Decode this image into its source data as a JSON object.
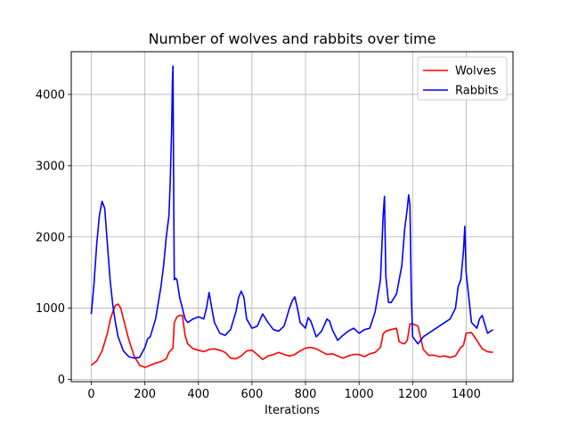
{
  "chart_data": {
    "type": "line",
    "title": "Number of wolves and rabbits over time",
    "xlabel": "Iterations",
    "ylabel": "",
    "xlim": [
      -75,
      1575
    ],
    "ylim": [
      -30,
      4600
    ],
    "xticks": [
      0,
      200,
      400,
      600,
      800,
      1000,
      1200,
      1400
    ],
    "yticks": [
      0,
      1000,
      2000,
      3000,
      4000
    ],
    "grid": true,
    "legend_position": "top-right",
    "series": [
      {
        "name": "Wolves",
        "color": "#ff0000",
        "x": [
          0,
          20,
          40,
          60,
          70,
          80,
          90,
          100,
          110,
          120,
          140,
          160,
          180,
          200,
          220,
          240,
          260,
          280,
          290,
          300,
          305,
          310,
          320,
          330,
          340,
          350,
          360,
          380,
          400,
          420,
          440,
          460,
          480,
          500,
          520,
          540,
          560,
          580,
          600,
          620,
          640,
          660,
          680,
          700,
          720,
          740,
          760,
          780,
          800,
          820,
          840,
          860,
          880,
          900,
          920,
          940,
          960,
          980,
          1000,
          1020,
          1040,
          1060,
          1080,
          1090,
          1100,
          1120,
          1140,
          1150,
          1160,
          1170,
          1180,
          1190,
          1200,
          1220,
          1240,
          1260,
          1280,
          1300,
          1320,
          1340,
          1360,
          1380,
          1390,
          1400,
          1420,
          1440,
          1460,
          1480,
          1500
        ],
        "y": [
          200,
          260,
          400,
          650,
          830,
          950,
          1040,
          1060,
          1000,
          850,
          560,
          330,
          200,
          170,
          200,
          230,
          250,
          290,
          380,
          420,
          440,
          800,
          880,
          900,
          900,
          620,
          500,
          430,
          410,
          390,
          420,
          430,
          410,
          380,
          300,
          290,
          330,
          400,
          410,
          350,
          280,
          330,
          350,
          380,
          350,
          330,
          350,
          400,
          440,
          450,
          430,
          390,
          350,
          360,
          330,
          300,
          330,
          350,
          350,
          320,
          360,
          380,
          450,
          640,
          680,
          700,
          720,
          530,
          510,
          500,
          550,
          780,
          780,
          750,
          420,
          340,
          340,
          320,
          330,
          310,
          330,
          450,
          480,
          650,
          660,
          550,
          430,
          390,
          380
        ]
      },
      {
        "name": "Rabbits",
        "color": "#0000ff",
        "x": [
          0,
          10,
          20,
          30,
          40,
          50,
          60,
          70,
          80,
          90,
          100,
          120,
          140,
          160,
          180,
          200,
          210,
          220,
          240,
          260,
          270,
          280,
          290,
          295,
          300,
          303,
          305,
          308,
          310,
          315,
          320,
          330,
          340,
          350,
          360,
          380,
          400,
          420,
          430,
          440,
          450,
          460,
          480,
          500,
          520,
          540,
          550,
          560,
          570,
          580,
          600,
          620,
          640,
          660,
          680,
          700,
          720,
          740,
          750,
          760,
          770,
          780,
          800,
          810,
          820,
          840,
          860,
          880,
          890,
          900,
          920,
          940,
          960,
          980,
          1000,
          1020,
          1040,
          1060,
          1080,
          1090,
          1095,
          1100,
          1110,
          1120,
          1140,
          1160,
          1170,
          1180,
          1185,
          1190,
          1195,
          1200,
          1220,
          1240,
          1260,
          1280,
          1300,
          1320,
          1340,
          1360,
          1370,
          1380,
          1390,
          1395,
          1400,
          1420,
          1440,
          1450,
          1460,
          1480,
          1500
        ],
        "y": [
          920,
          1350,
          1900,
          2300,
          2500,
          2400,
          1900,
          1400,
          1050,
          800,
          600,
          400,
          320,
          300,
          310,
          450,
          570,
          600,
          850,
          1300,
          1600,
          2000,
          2300,
          2800,
          3500,
          4200,
          4400,
          2500,
          1400,
          1420,
          1400,
          1150,
          1000,
          850,
          800,
          850,
          880,
          850,
          1000,
          1220,
          1000,
          800,
          650,
          620,
          700,
          950,
          1150,
          1240,
          1150,
          850,
          720,
          750,
          920,
          800,
          700,
          680,
          750,
          1000,
          1100,
          1160,
          1000,
          800,
          720,
          870,
          820,
          600,
          680,
          850,
          820,
          700,
          550,
          620,
          680,
          720,
          650,
          700,
          720,
          950,
          1400,
          2300,
          2570,
          1450,
          1080,
          1080,
          1200,
          1600,
          2100,
          2400,
          2590,
          2450,
          1200,
          600,
          500,
          600,
          650,
          700,
          750,
          800,
          850,
          1000,
          1300,
          1400,
          1800,
          2150,
          1500,
          800,
          720,
          850,
          900,
          650,
          700
        ]
      }
    ]
  }
}
